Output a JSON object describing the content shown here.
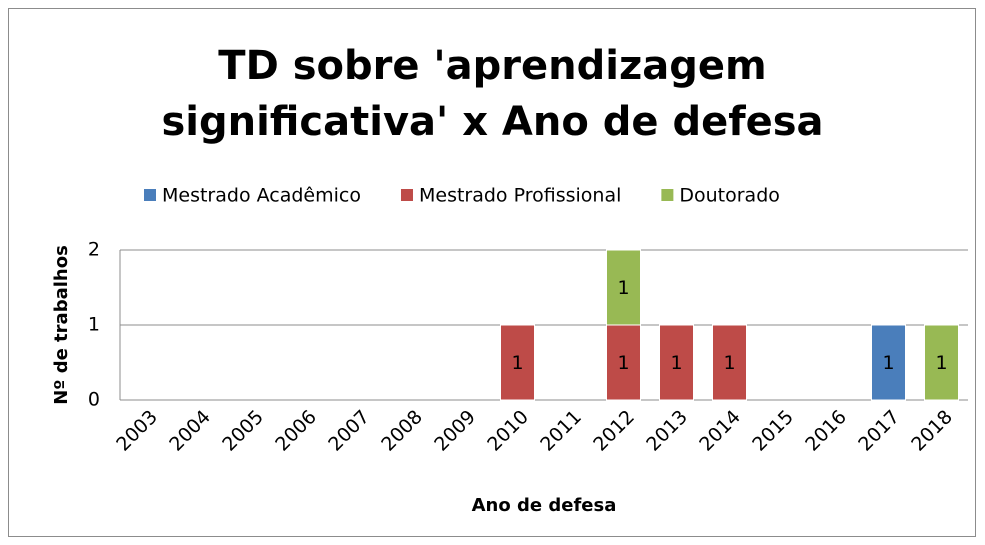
{
  "chart_data": {
    "type": "stacked_bar",
    "title": "TD sobre 'aprendizagem significativa' x Ano de defesa",
    "x_label": "Ano de defesa",
    "y_label": "Nº de trabalhos",
    "categories": [
      "2003",
      "2004",
      "2005",
      "2006",
      "2007",
      "2008",
      "2009",
      "2010",
      "2011",
      "2012",
      "2013",
      "2014",
      "2015",
      "2016",
      "2017",
      "2018"
    ],
    "series": [
      {
        "name": "Mestrado Acadêmico",
        "color": "#4a7ebb",
        "values": [
          null,
          null,
          null,
          null,
          null,
          null,
          null,
          null,
          null,
          null,
          null,
          null,
          null,
          null,
          1,
          null
        ]
      },
      {
        "name": "Mestrado Profissional",
        "color": "#be4b48",
        "values": [
          null,
          null,
          null,
          null,
          null,
          null,
          null,
          1,
          null,
          1,
          1,
          1,
          null,
          null,
          null,
          null
        ]
      },
      {
        "name": "Doutorado",
        "color": "#98b954",
        "values": [
          null,
          null,
          null,
          null,
          null,
          null,
          null,
          null,
          null,
          1,
          null,
          null,
          null,
          null,
          null,
          1
        ]
      }
    ],
    "ylim": [
      0,
      2
    ],
    "yticks": [
      0,
      1,
      2
    ],
    "grid": true,
    "legend": "top"
  }
}
